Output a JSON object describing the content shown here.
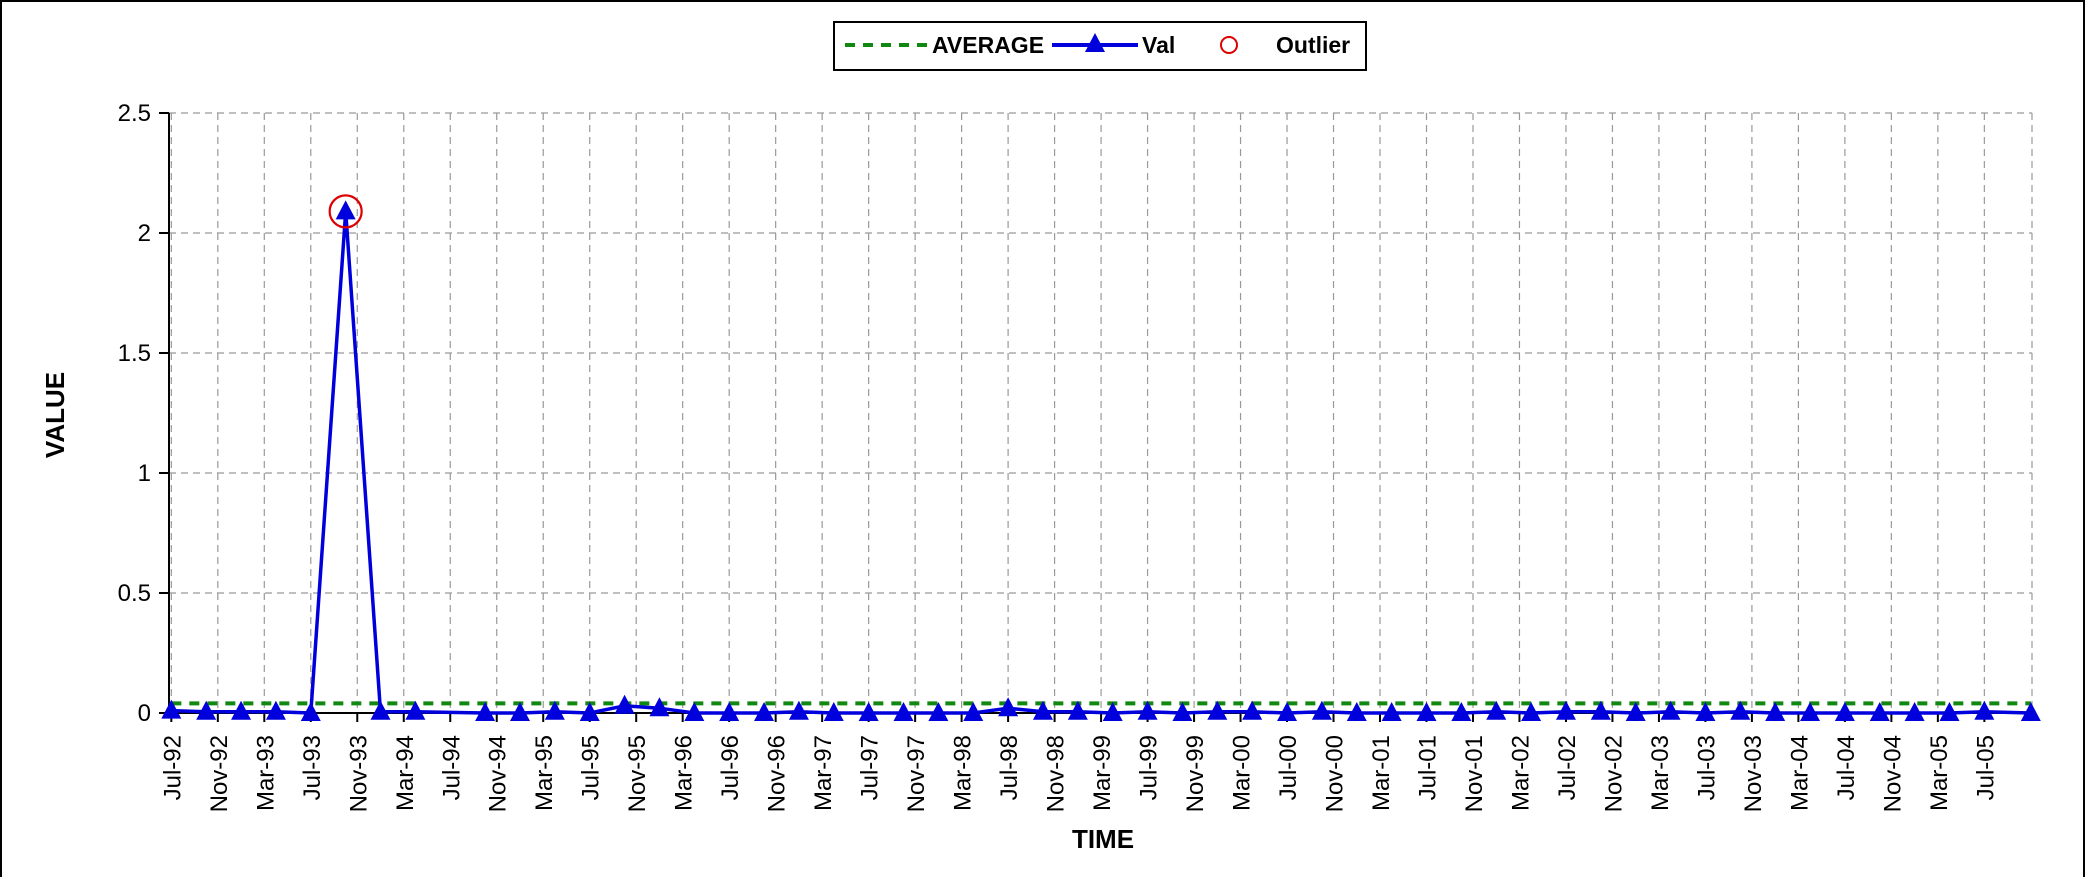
{
  "chart_data": {
    "type": "line",
    "title": "",
    "xlabel": "TIME",
    "ylabel": "VALUE",
    "ylim": [
      0,
      2.5
    ],
    "y_ticks": [
      "0",
      "0.5",
      "1",
      "1.5",
      "2",
      "2.5"
    ],
    "y_tick_values": [
      0,
      0.5,
      1,
      1.5,
      2,
      2.5
    ],
    "x_tick_labels": [
      "Jul-92",
      "Nov-92",
      "Mar-93",
      "Jul-93",
      "Nov-93",
      "Mar-94",
      "Jul-94",
      "Nov-94",
      "Mar-95",
      "Jul-95",
      "Nov-95",
      "Mar-96",
      "Jul-96",
      "Nov-96",
      "Mar-97",
      "Jul-97",
      "Nov-97",
      "Mar-98",
      "Jul-98",
      "Nov-98",
      "Mar-99",
      "Jul-99",
      "Nov-99",
      "Mar-00",
      "Jul-00",
      "Nov-00",
      "Mar-01",
      "Jul-01",
      "Nov-01",
      "Mar-02",
      "Jul-02",
      "Nov-02",
      "Mar-03",
      "Jul-03",
      "Nov-03",
      "Mar-04",
      "Jul-04",
      "Nov-04",
      "Mar-05",
      "Jul-05"
    ],
    "grid": true,
    "legend_position": "top-center",
    "colors": {
      "val": "#0000dd",
      "average": "#118811",
      "outlier": "#dd0000"
    },
    "series": [
      {
        "name": "AVERAGE",
        "style": "dashed",
        "x": [
          "1992-07",
          "2005-11"
        ],
        "values": [
          0.04,
          0.04
        ]
      },
      {
        "name": "Val",
        "style": "line-triangle",
        "x": [
          "1992-07",
          "1992-10",
          "1993-01",
          "1993-04",
          "1993-07",
          "1993-10",
          "1994-01",
          "1994-04",
          "1994-10",
          "1995-01",
          "1995-04",
          "1995-07",
          "1995-10",
          "1996-01",
          "1996-04",
          "1996-07",
          "1996-10",
          "1997-01",
          "1997-04",
          "1997-07",
          "1997-10",
          "1998-01",
          "1998-04",
          "1998-07",
          "1998-10",
          "1999-01",
          "1999-04",
          "1999-07",
          "1999-10",
          "2000-01",
          "2000-04",
          "2000-07",
          "2000-10",
          "2001-01",
          "2001-04",
          "2001-07",
          "2001-10",
          "2002-01",
          "2002-04",
          "2002-07",
          "2002-10",
          "2003-01",
          "2003-04",
          "2003-07",
          "2003-10",
          "2004-01",
          "2004-04",
          "2004-07",
          "2004-10",
          "2005-01",
          "2005-04",
          "2005-07",
          "2005-11"
        ],
        "values": [
          0.01,
          0.005,
          0.005,
          0.005,
          0.0,
          2.09,
          0.005,
          0.005,
          0.0,
          0.0,
          0.005,
          0.0,
          0.03,
          0.02,
          0.0,
          0.0,
          0.0,
          0.005,
          0.0,
          0.0,
          0.0,
          0.0,
          0.0,
          0.02,
          0.005,
          0.005,
          0.0,
          0.005,
          0.0,
          0.005,
          0.005,
          0.0,
          0.005,
          0.0,
          0.0,
          0.0,
          0.0,
          0.005,
          0.0,
          0.005,
          0.005,
          0.0,
          0.005,
          0.0,
          0.005,
          0.0,
          0.0,
          0.0,
          0.0,
          0.0,
          0.0,
          0.005,
          0.0
        ]
      },
      {
        "name": "Outlier",
        "style": "circle-marker",
        "x": [
          "1993-10"
        ],
        "values": [
          2.09
        ]
      }
    ]
  }
}
